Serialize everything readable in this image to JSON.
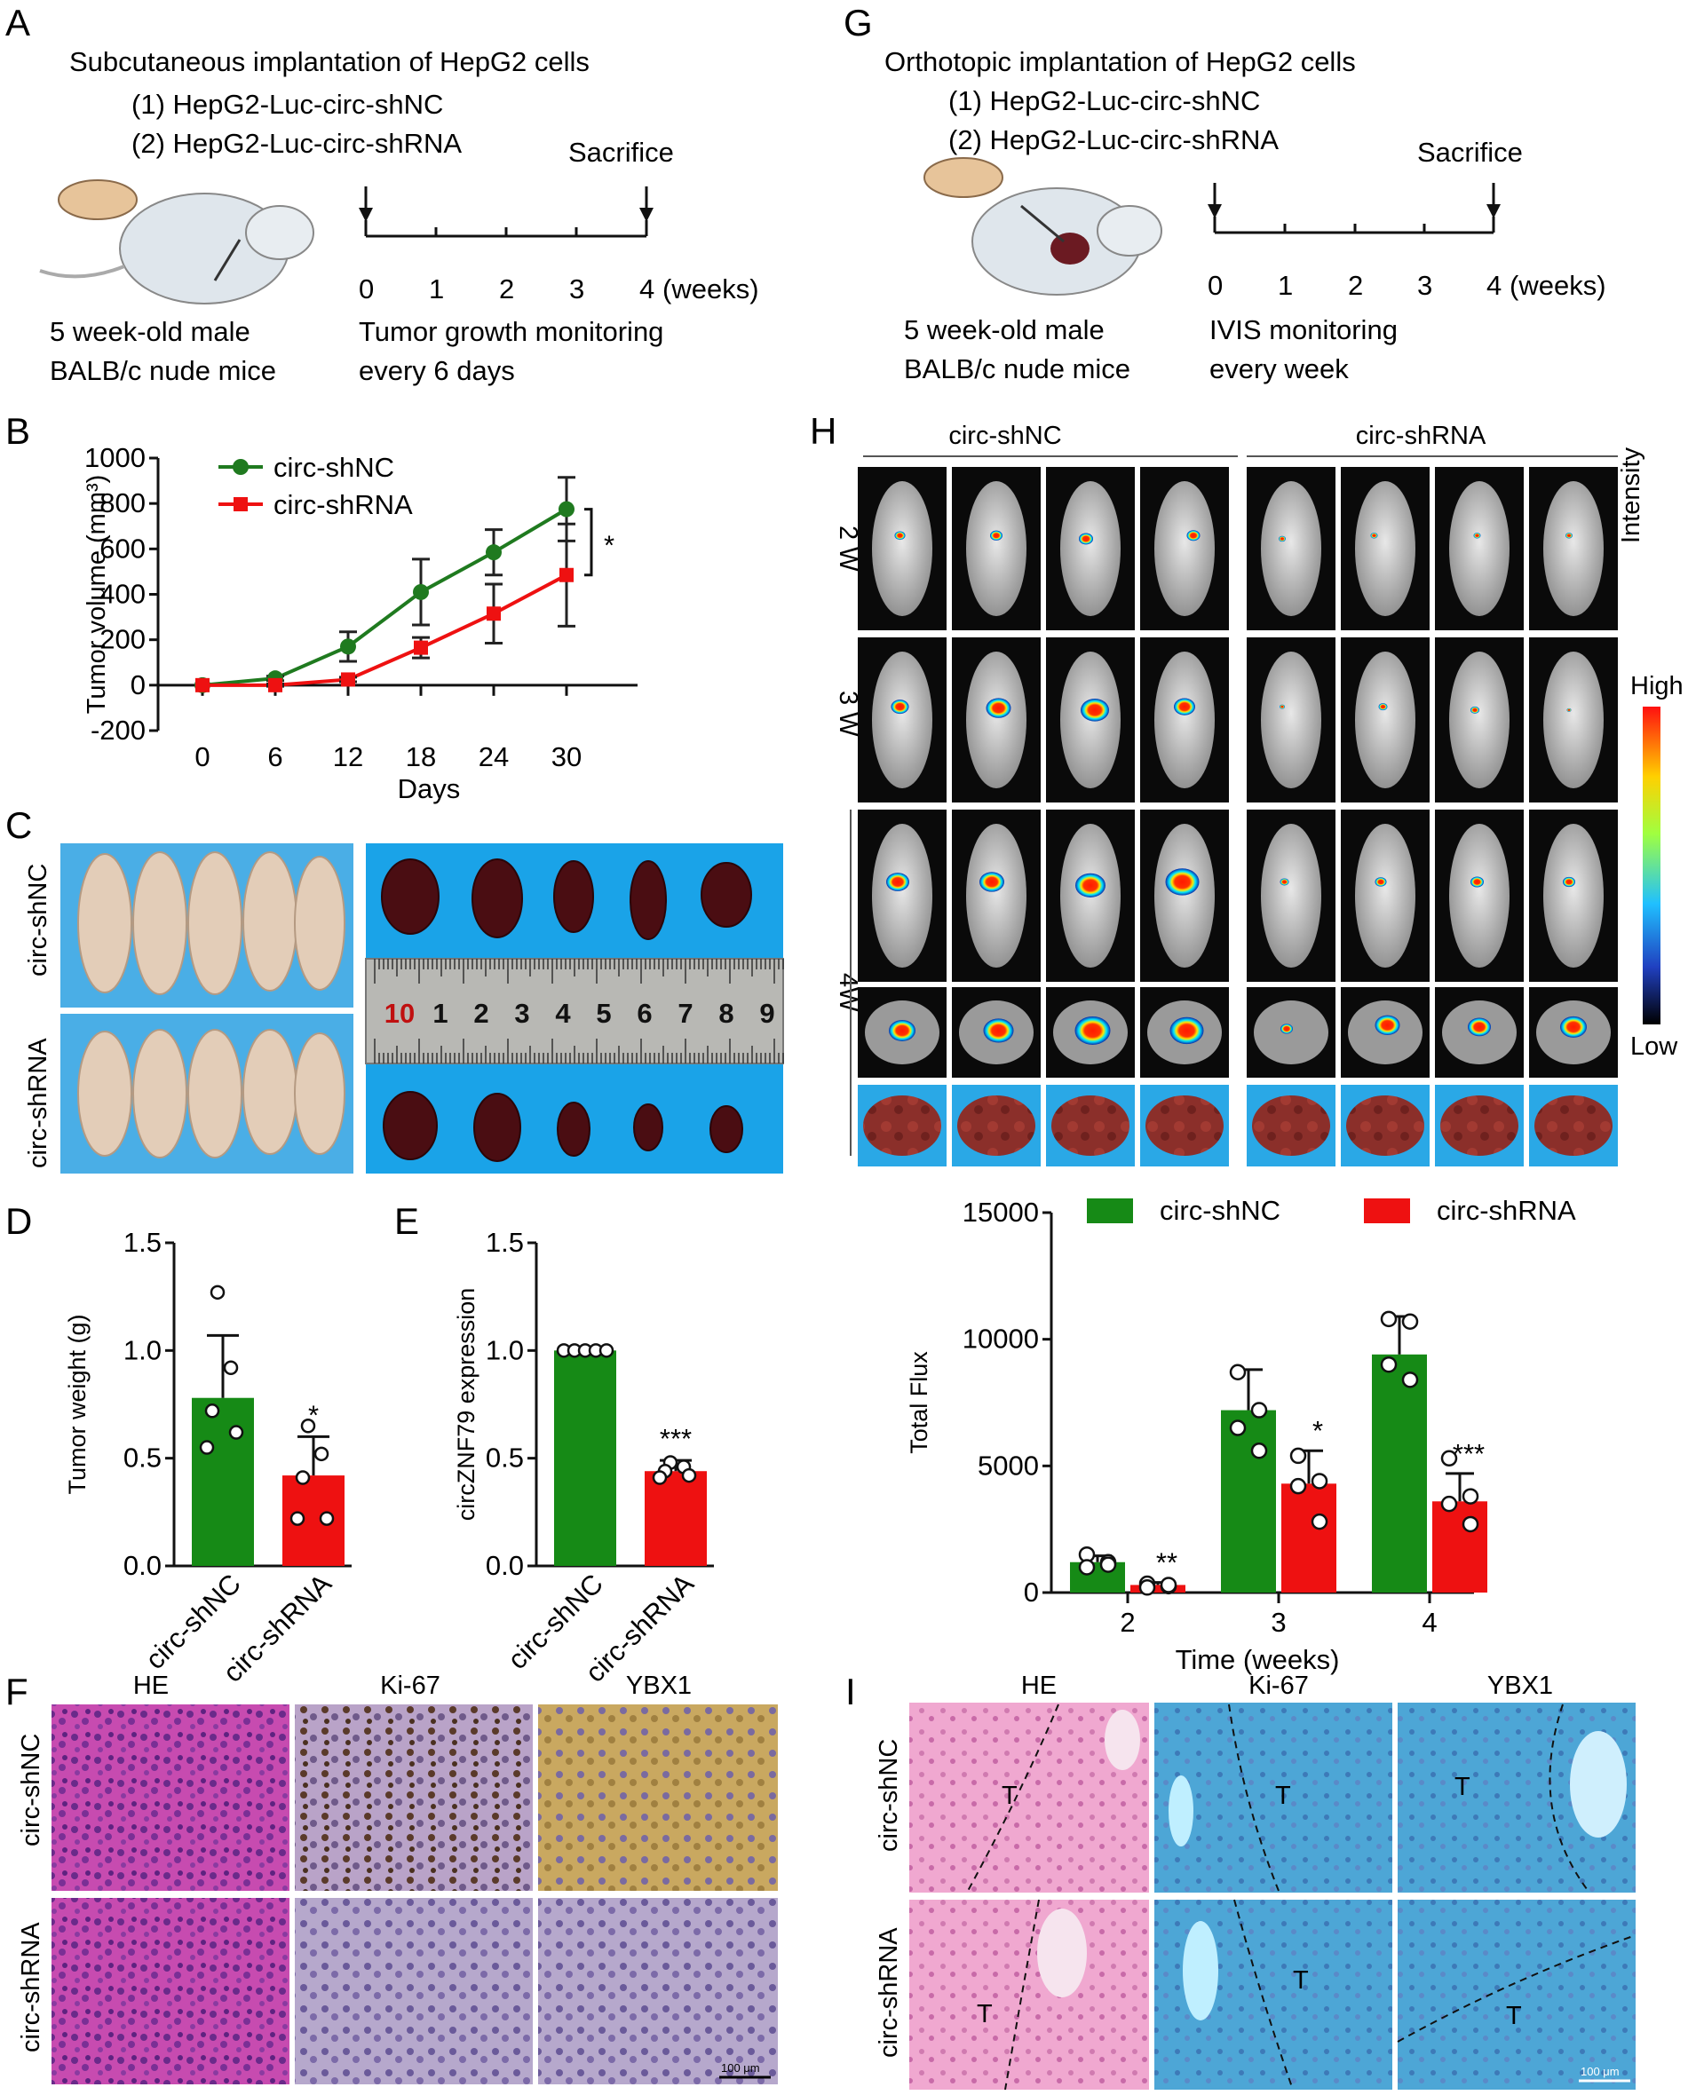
{
  "panels": {
    "A": "A",
    "B": "B",
    "C": "C",
    "D": "D",
    "E": "E",
    "F": "F",
    "G": "G",
    "H": "H",
    "I": "I"
  },
  "panelA": {
    "title": "Subcutaneous implantation of HepG2 cells",
    "group1": "(1) HepG2-Luc-circ-shNC",
    "group2": "(2) HepG2-Luc-circ-shRNA",
    "sacrifice": "Sacrifice",
    "ticks": [
      "0",
      "1",
      "2",
      "3",
      "4"
    ],
    "unit": "(weeks)",
    "mice_line1": "5 week-old male",
    "mice_line2": "BALB/c nude mice",
    "monitor_line1": "Tumor growth monitoring",
    "monitor_line2": "every 6 days"
  },
  "panelG": {
    "title": "Orthotopic implantation of HepG2 cells",
    "group1": "(1) HepG2-Luc-circ-shNC",
    "group2": "(2) HepG2-Luc-circ-shRNA",
    "sacrifice": "Sacrifice",
    "ticks": [
      "0",
      "1",
      "2",
      "3",
      "4"
    ],
    "unit": "(weeks)",
    "mice_line1": "5 week-old male",
    "mice_line2": "BALB/c nude mice",
    "monitor_line1": "IVIS monitoring",
    "monitor_line2": "every week"
  },
  "panelC": {
    "row1": "circ-shNC",
    "row2": "circ-shRNA",
    "ruler": [
      "10",
      "1",
      "2",
      "3",
      "4",
      "5",
      "6",
      "7",
      "8",
      "9"
    ]
  },
  "panelF": {
    "cols": [
      "HE",
      "Ki-67",
      "YBX1"
    ],
    "rows": [
      "circ-shNC",
      "circ-shRNA"
    ],
    "scale": "100 μm"
  },
  "panelI": {
    "cols": [
      "HE",
      "Ki-67",
      "YBX1"
    ],
    "rows": [
      "circ-shNC",
      "circ-shRNA"
    ],
    "tumor": "T",
    "scale": "100 μm"
  },
  "panelH": {
    "groups": [
      "circ-shNC",
      "circ-shRNA"
    ],
    "rows": [
      "2 W",
      "3 W",
      "4W"
    ],
    "intensity": "Intensity",
    "high": "High",
    "low": "Low"
  },
  "chart_data": [
    {
      "id": "B",
      "type": "line",
      "x": [
        0,
        6,
        12,
        18,
        24,
        30
      ],
      "xticks": [
        "0",
        "6",
        "12",
        "18",
        "24",
        "30"
      ],
      "yticks": [
        "1000",
        "800",
        "600",
        "400",
        "200",
        "0",
        "-200"
      ],
      "xlabel": "Days",
      "ylabel": "Tumor volume (mm³)",
      "ylim": [
        -200,
        1000
      ],
      "series": [
        {
          "name": "circ-shNC",
          "color": "#1f7a1f",
          "values": [
            0,
            30,
            170,
            410,
            585,
            775
          ],
          "err": [
            0,
            10,
            65,
            145,
            100,
            140
          ]
        },
        {
          "name": "circ-shRNA",
          "color": "#ee1111",
          "values": [
            0,
            0,
            25,
            165,
            315,
            485
          ],
          "err": [
            0,
            5,
            10,
            45,
            130,
            225
          ]
        }
      ],
      "significance": "*"
    },
    {
      "id": "D",
      "type": "bar",
      "categories": [
        "circ-shNC",
        "circ-shRNA"
      ],
      "values": [
        0.78,
        0.42
      ],
      "err": [
        0.29,
        0.18
      ],
      "colors": [
        "#168a16",
        "#ee1111"
      ],
      "points": [
        [
          1.27,
          0.92,
          0.72,
          0.62,
          0.55
        ],
        [
          0.65,
          0.52,
          0.41,
          0.22,
          0.22
        ]
      ],
      "ylabel": "Tumor weight (g)",
      "yticks": [
        "0.0",
        "0.5",
        "1.0",
        "1.5"
      ],
      "ylim": [
        0,
        1.5
      ],
      "significance": [
        "",
        "*"
      ]
    },
    {
      "id": "E",
      "type": "bar",
      "categories": [
        "circ-shNC",
        "circ-shRNA"
      ],
      "values": [
        1.0,
        0.44
      ],
      "err": [
        0.0,
        0.05
      ],
      "colors": [
        "#168a16",
        "#ee1111"
      ],
      "points": [
        [
          1,
          1,
          1,
          1,
          1
        ],
        [
          0.48,
          0.46,
          0.44,
          0.42,
          0.41
        ]
      ],
      "ylabel": "circZNF79 expression",
      "yticks": [
        "0.0",
        "0.5",
        "1.0",
        "1.5"
      ],
      "ylim": [
        0,
        1.5
      ],
      "significance": [
        "",
        "***"
      ]
    },
    {
      "id": "H-bar",
      "type": "bar",
      "categories": [
        "2",
        "3",
        "4"
      ],
      "xlabel": "Time (weeks)",
      "ylabel": "Total Flux",
      "yticks": [
        "0",
        "5000",
        "10000",
        "15000"
      ],
      "ylim": [
        0,
        15000
      ],
      "series": [
        {
          "name": "circ-shNC",
          "color": "#168a16",
          "values": [
            1200,
            7200,
            9400
          ],
          "err": [
            250,
            1600,
            1500
          ],
          "points": [
            [
              1500,
              1200,
              1000,
              1100
            ],
            [
              8700,
              7200,
              6500,
              5600
            ],
            [
              10800,
              10700,
              9000,
              8400
            ]
          ]
        },
        {
          "name": "circ-shRNA",
          "color": "#ee1111",
          "values": [
            300,
            4300,
            3600
          ],
          "err": [
            100,
            1300,
            1100
          ],
          "points": [
            [
              350,
              250,
              200,
              300
            ],
            [
              5400,
              4400,
              4200,
              2800
            ],
            [
              5300,
              3800,
              3500,
              2700
            ]
          ]
        }
      ],
      "significance": [
        "**",
        "*",
        "***"
      ]
    }
  ]
}
